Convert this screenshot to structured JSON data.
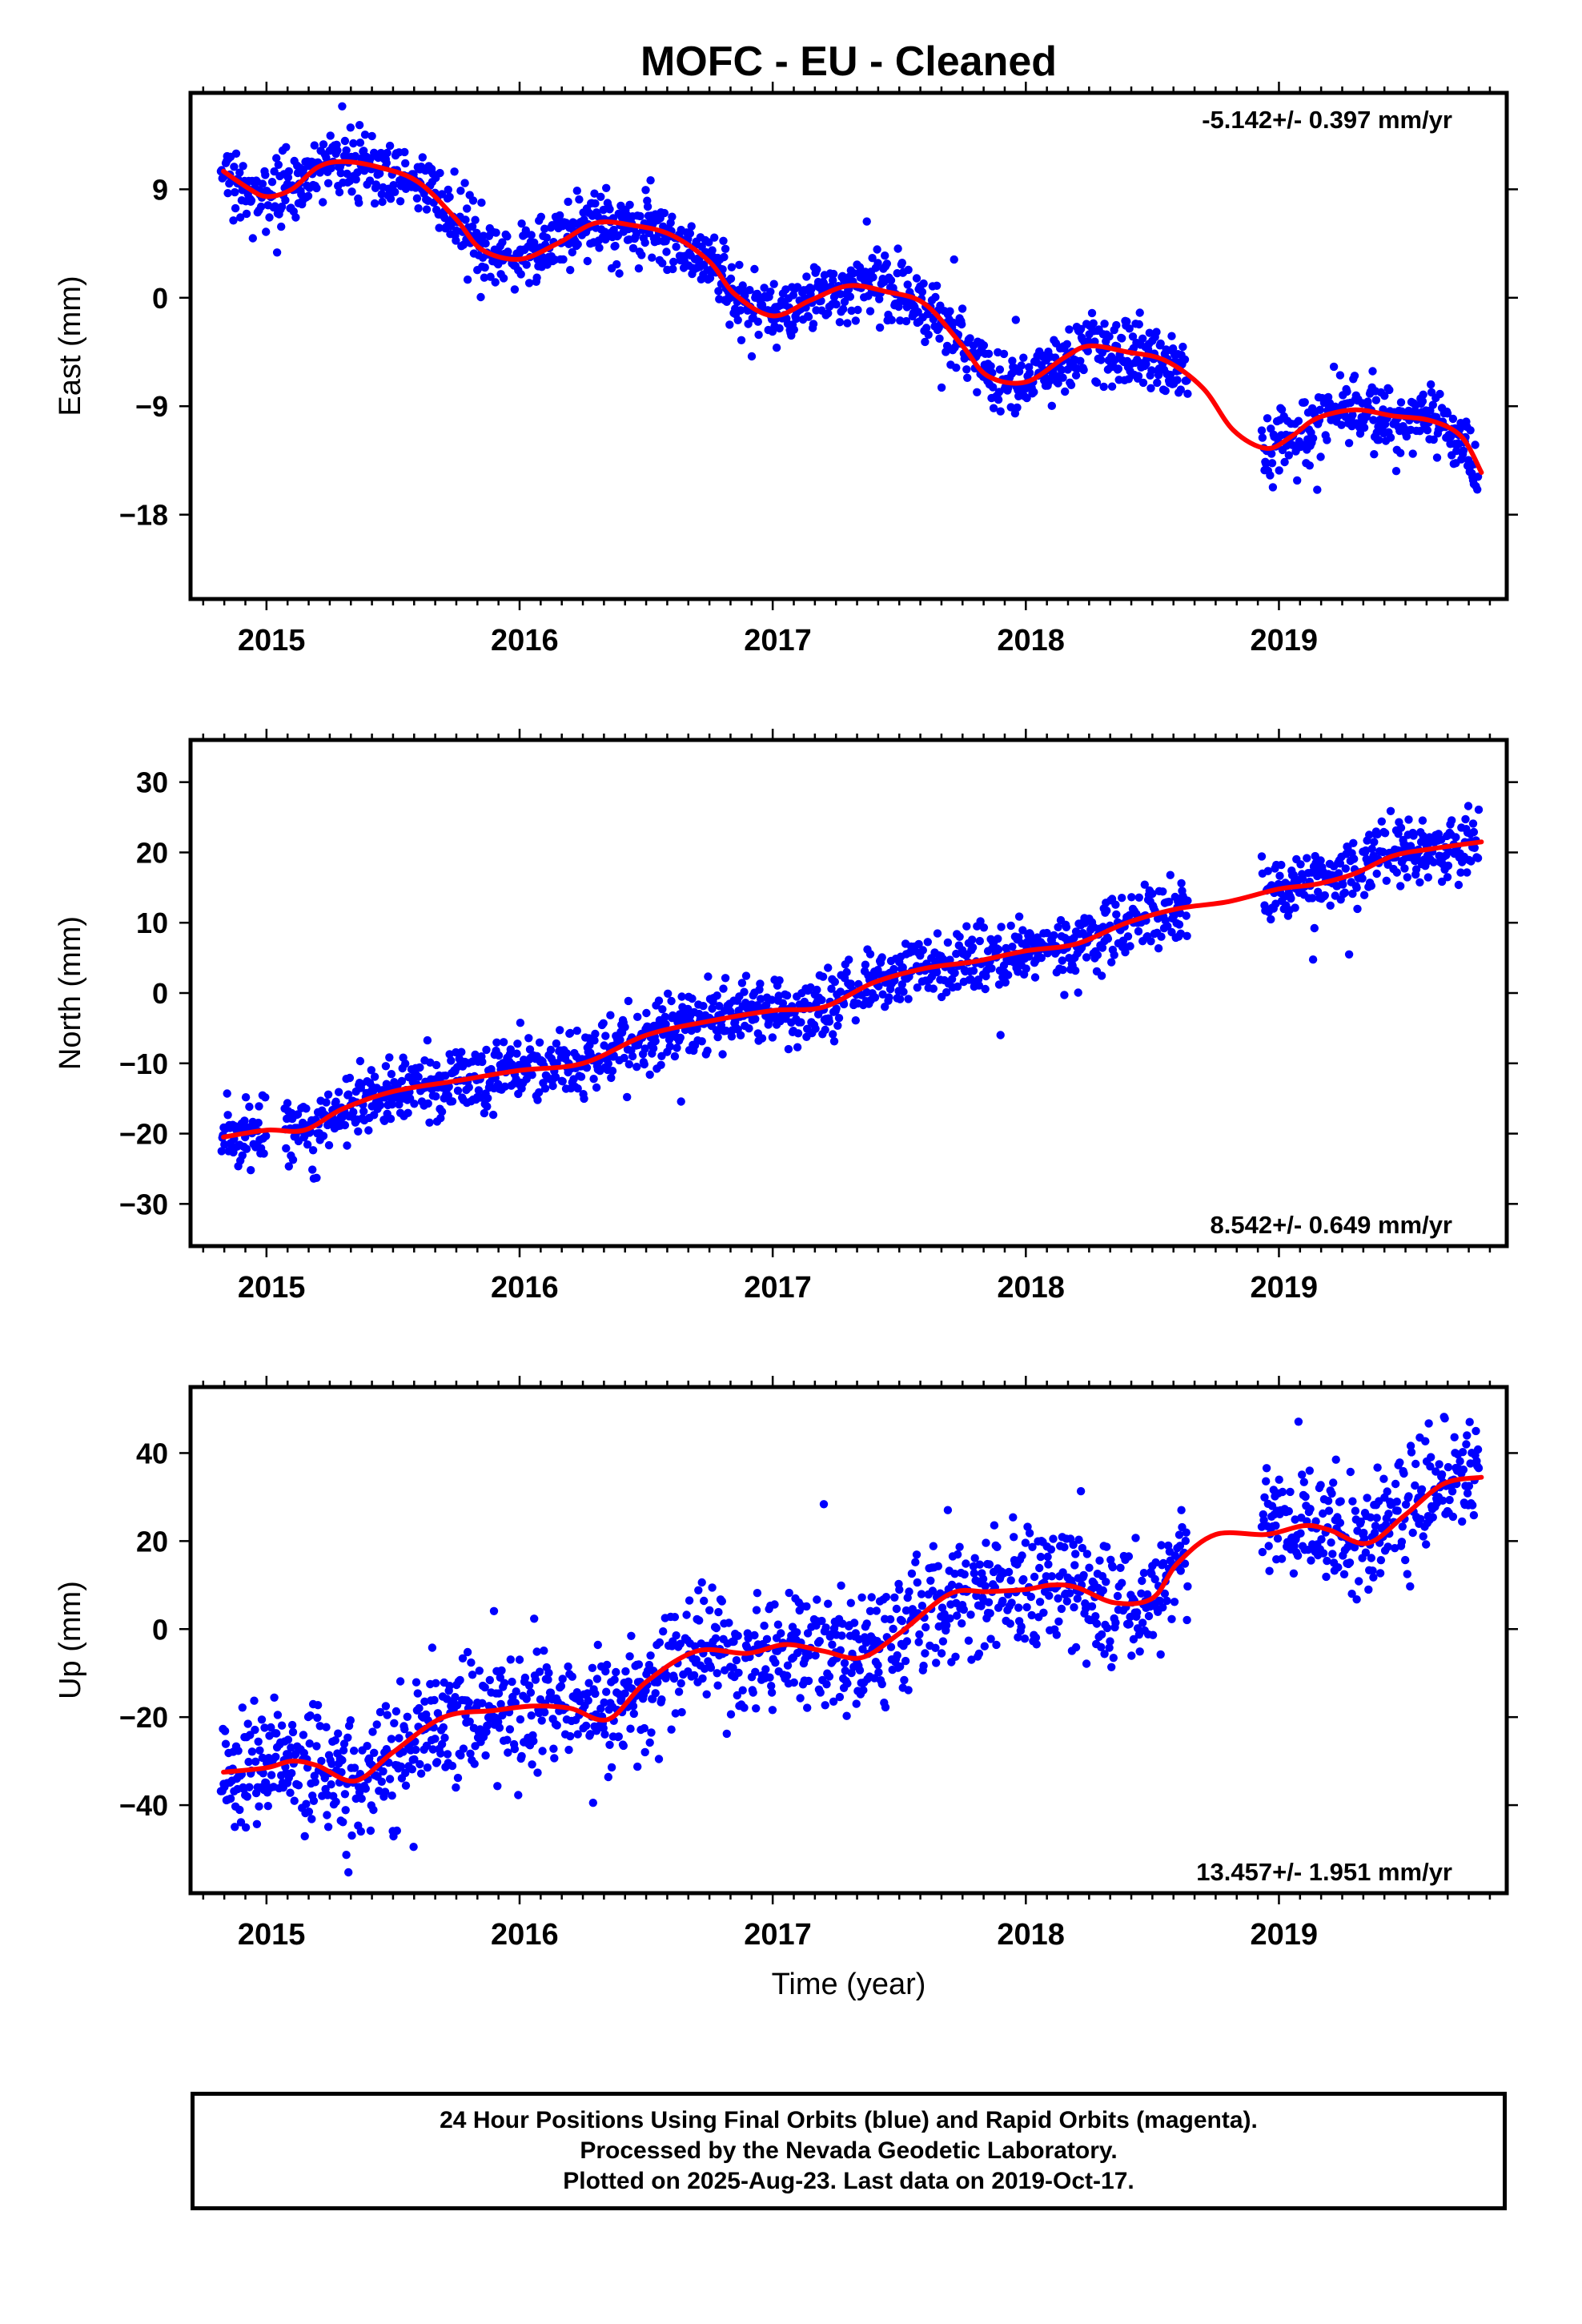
{
  "title": "MOFC  - EU - Cleaned",
  "xlabel": "Time (year)",
  "footer": {
    "line1": "24 Hour Positions Using Final Orbits (blue) and Rapid Orbits (magenta).",
    "line2": "Processed by the Nevada Geodetic Laboratory.",
    "line3": "Plotted on 2025-Aug-23. Last data on 2019-Oct-17."
  },
  "colors": {
    "points": "#0000ff",
    "trend": "#ff0000",
    "axes": "#000000"
  },
  "chart_data": [
    {
      "type": "scatter",
      "name": "east",
      "ylabel": "East (mm)",
      "rate_label": "-5.142+/- 0.397 mm/yr",
      "rate_position": "top-right",
      "xlim": [
        2014.7,
        2019.9
      ],
      "ylim": [
        -25,
        17
      ],
      "xticks": [
        2015,
        2016,
        2017,
        2018,
        2019
      ],
      "yticks": [
        9,
        0,
        -9,
        -18
      ],
      "ytick_labels": [
        "9",
        "0",
        "−9",
        "−18"
      ],
      "trend": {
        "x": [
          2014.83,
          2014.92,
          2015.0,
          2015.1,
          2015.2,
          2015.3,
          2015.45,
          2015.6,
          2015.75,
          2015.85,
          2016.0,
          2016.15,
          2016.3,
          2016.45,
          2016.6,
          2016.75,
          2016.85,
          2017.0,
          2017.15,
          2017.3,
          2017.45,
          2017.6,
          2017.75,
          2017.85,
          2018.0,
          2018.15,
          2018.25,
          2018.4,
          2018.55,
          2018.7,
          2018.82,
          2018.95,
          2019.05,
          2019.15,
          2019.3,
          2019.45,
          2019.6,
          2019.72,
          2019.8
        ],
        "y": [
          10.5,
          9.2,
          8.4,
          9.0,
          10.8,
          11.3,
          10.8,
          9.6,
          6.5,
          4.0,
          3.2,
          4.5,
          6.2,
          6.0,
          5.2,
          3.0,
          0.3,
          -1.5,
          -0.2,
          1.0,
          0.5,
          -0.5,
          -4.0,
          -6.5,
          -7.0,
          -5.0,
          -4.0,
          -4.5,
          -5.2,
          -7.5,
          -11.0,
          -12.5,
          -11.5,
          -10.0,
          -9.3,
          -9.8,
          -10.2,
          -11.5,
          -14.5
        ]
      },
      "scatter": {
        "x_start": 2014.82,
        "x_end": 2019.79,
        "gaps": [
          [
            2018.64,
            2018.93
          ]
        ],
        "sigma": 1.4
      }
    },
    {
      "type": "scatter",
      "name": "north",
      "ylabel": "North (mm)",
      "rate_label": "8.542+/- 0.649 mm/yr",
      "rate_position": "bottom-right",
      "xlim": [
        2014.7,
        2019.9
      ],
      "ylim": [
        -36,
        36
      ],
      "xticks": [
        2015,
        2016,
        2017,
        2018,
        2019
      ],
      "yticks": [
        30,
        20,
        10,
        0,
        -10,
        -20,
        -30
      ],
      "ytick_labels": [
        "30",
        "20",
        "10",
        "0",
        "−10",
        "−20",
        "−30"
      ],
      "trend": {
        "x": [
          2014.83,
          2015.0,
          2015.15,
          2015.3,
          2015.5,
          2015.75,
          2016.0,
          2016.25,
          2016.5,
          2016.75,
          2017.0,
          2017.2,
          2017.4,
          2017.6,
          2017.8,
          2018.0,
          2018.2,
          2018.4,
          2018.6,
          2018.8,
          2019.0,
          2019.15,
          2019.3,
          2019.45,
          2019.6,
          2019.8
        ],
        "y": [
          -20.5,
          -19.5,
          -19.5,
          -16.5,
          -14.0,
          -12.5,
          -11.0,
          -10.0,
          -6.0,
          -4.0,
          -2.5,
          -2.0,
          1.5,
          3.5,
          4.5,
          6.0,
          7.0,
          10.0,
          12.0,
          13.0,
          14.8,
          15.5,
          17.0,
          19.5,
          20.5,
          21.5
        ]
      },
      "scatter": {
        "x_start": 2014.82,
        "x_end": 2019.79,
        "gaps": [
          [
            2015.0,
            2015.07
          ],
          [
            2018.64,
            2018.93
          ]
        ],
        "sigma": 2.4
      }
    },
    {
      "type": "scatter",
      "name": "up",
      "ylabel": "Up (mm)",
      "rate_label": "13.457+/- 1.951 mm/yr",
      "rate_position": "bottom-right",
      "xlim": [
        2014.7,
        2019.9
      ],
      "ylim": [
        -60,
        55
      ],
      "xticks": [
        2015,
        2016,
        2017,
        2018,
        2019
      ],
      "yticks": [
        40,
        20,
        0,
        -20,
        -40
      ],
      "ytick_labels": [
        "40",
        "20",
        "0",
        "−20",
        "−40"
      ],
      "trend": {
        "x": [
          2014.83,
          2015.0,
          2015.1,
          2015.2,
          2015.35,
          2015.5,
          2015.7,
          2015.9,
          2016.05,
          2016.2,
          2016.35,
          2016.5,
          2016.7,
          2016.9,
          2017.05,
          2017.2,
          2017.35,
          2017.5,
          2017.7,
          2017.85,
          2018.0,
          2018.1,
          2018.2,
          2018.35,
          2018.5,
          2018.6,
          2018.75,
          2018.95,
          2019.1,
          2019.2,
          2019.35,
          2019.5,
          2019.65,
          2019.8
        ],
        "y": [
          -32.5,
          -31.5,
          -30.0,
          -31.0,
          -34.5,
          -28.0,
          -20.0,
          -18.5,
          -17.5,
          -18.0,
          -20.5,
          -12.0,
          -5.0,
          -5.5,
          -3.5,
          -5.0,
          -6.5,
          -1.0,
          8.0,
          8.5,
          9.0,
          10.0,
          9.5,
          6.0,
          7.0,
          15.0,
          21.5,
          21.5,
          23.5,
          22.5,
          19.5,
          26.0,
          33.0,
          34.5
        ]
      },
      "scatter": {
        "x_start": 2014.82,
        "x_end": 2019.79,
        "gaps": [
          [
            2018.64,
            2018.93
          ]
        ],
        "sigma": 7.0
      }
    }
  ]
}
